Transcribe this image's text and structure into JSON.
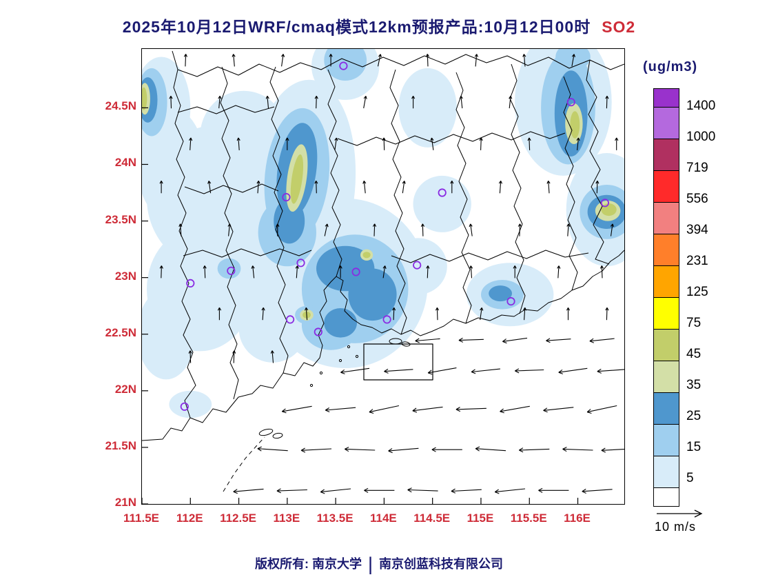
{
  "title": {
    "main": "2025年10月12日WRF/cmaq模式12km预报产品:10月12日00时",
    "species": "SO2"
  },
  "footer": {
    "left": "版权所有: 南京大学",
    "separator": "|",
    "right": "南京创蓝科技有限公司"
  },
  "colorbar": {
    "unit_label": "(ug/m3)",
    "tick_labels": [
      "1400",
      "1000",
      "719",
      "556",
      "394",
      "231",
      "125",
      "75",
      "45",
      "35",
      "25",
      "15",
      "5"
    ],
    "colors_top_to_bottom": [
      "#9932CC",
      "#B469DE",
      "#B03060",
      "#FF2A2A",
      "#F28080",
      "#FF7F2A",
      "#FFA500",
      "#FFFF00",
      "#C2CE6A",
      "#D3DFA7",
      "#4F97CE",
      "#9FCFEF",
      "#D8ECF9",
      "#FFFFFF"
    ]
  },
  "axes": {
    "y_ticks": [
      "24.5N",
      "24N",
      "23.5N",
      "23N",
      "22.5N",
      "22N",
      "21.5N",
      "21N"
    ],
    "x_ticks": [
      "111.5E",
      "112E",
      "112.5E",
      "113E",
      "113.5E",
      "114E",
      "114.5E",
      "115E",
      "115.5E",
      "116E"
    ],
    "tick_color": "#CE2B37"
  },
  "wind_legend": {
    "label": "10 m/s"
  },
  "chart_data": {
    "type": "heatmap",
    "title": "2025年10月12日WRF/cmaq模式12km预报产品:10月12日00时 SO2",
    "species": "SO2",
    "unit": "ug/m3",
    "lon_range": [
      111.5,
      116.48
    ],
    "lat_range": [
      21.0,
      25.02
    ],
    "levels": [
      5,
      15,
      25,
      35,
      45,
      75,
      125,
      231,
      394,
      556,
      719,
      1000,
      1400
    ],
    "level_colors_low_to_high": [
      "#FFFFFF",
      "#D8ECF9",
      "#9FCFEF",
      "#4F97CE",
      "#D3DFA7",
      "#C2CE6A",
      "#FFFF00",
      "#FFA500",
      "#FF7F2A",
      "#F28080",
      "#FF2A2A",
      "#B03060",
      "#B469DE",
      "#9932CC"
    ],
    "station_color": "#8A2BE2",
    "so2_regions": {
      "5": [
        [
          112.3,
          23.7,
          0.75,
          0.65,
          0
        ],
        [
          112.1,
          22.9,
          0.55,
          0.55,
          0
        ],
        [
          112.6,
          23.2,
          0.5,
          0.5,
          0
        ],
        [
          112.55,
          24.25,
          0.45,
          0.4,
          0
        ],
        [
          111.8,
          24.0,
          0.35,
          0.5,
          0
        ],
        [
          111.75,
          22.5,
          0.3,
          0.4,
          0
        ],
        [
          112.85,
          22.55,
          0.35,
          0.3,
          0
        ],
        [
          113.15,
          23.8,
          0.55,
          0.95,
          5
        ],
        [
          113.6,
          22.95,
          0.85,
          0.75,
          0
        ],
        [
          114.35,
          23.1,
          0.3,
          0.25,
          0
        ],
        [
          114.6,
          23.65,
          0.3,
          0.25,
          0
        ],
        [
          113.6,
          24.87,
          0.35,
          0.3,
          0
        ],
        [
          111.7,
          24.5,
          0.3,
          0.45,
          0
        ],
        [
          115.85,
          24.55,
          0.5,
          0.65,
          0
        ],
        [
          116.3,
          23.6,
          0.42,
          0.5,
          0
        ],
        [
          115.3,
          22.85,
          0.45,
          0.28,
          0
        ],
        [
          112.0,
          21.88,
          0.22,
          0.12,
          0
        ],
        [
          114.45,
          24.5,
          0.3,
          0.35,
          0
        ],
        [
          112.4,
          23.08,
          0.2,
          0.15,
          0
        ]
      ],
      "15": [
        [
          113.1,
          23.9,
          0.33,
          0.6,
          6
        ],
        [
          113.0,
          23.4,
          0.3,
          0.3,
          0
        ],
        [
          113.7,
          22.9,
          0.55,
          0.48,
          0
        ],
        [
          113.45,
          22.58,
          0.3,
          0.22,
          0
        ],
        [
          113.6,
          24.92,
          0.22,
          0.18,
          0
        ],
        [
          111.6,
          24.55,
          0.16,
          0.3,
          0
        ],
        [
          115.9,
          24.5,
          0.28,
          0.5,
          0
        ],
        [
          116.3,
          23.58,
          0.28,
          0.24,
          0
        ],
        [
          115.22,
          22.85,
          0.22,
          0.13,
          0
        ],
        [
          113.82,
          23.2,
          0.12,
          0.1,
          0
        ],
        [
          113.2,
          22.67,
          0.12,
          0.08,
          0
        ],
        [
          112.4,
          23.08,
          0.12,
          0.09,
          0
        ],
        [
          115.95,
          24.95,
          0.18,
          0.12,
          0
        ]
      ],
      "25": [
        [
          113.1,
          23.95,
          0.2,
          0.42,
          8
        ],
        [
          113.02,
          23.5,
          0.16,
          0.2,
          0
        ],
        [
          113.6,
          23.08,
          0.3,
          0.2,
          0
        ],
        [
          113.88,
          22.85,
          0.25,
          0.23,
          0
        ],
        [
          113.55,
          22.6,
          0.17,
          0.13,
          0
        ],
        [
          115.93,
          24.45,
          0.17,
          0.38,
          0
        ],
        [
          116.3,
          23.58,
          0.2,
          0.15,
          0
        ],
        [
          115.2,
          22.86,
          0.12,
          0.07,
          0
        ],
        [
          111.56,
          24.57,
          0.1,
          0.2,
          0
        ]
      ],
      "35": [
        [
          113.1,
          23.88,
          0.1,
          0.3,
          8
        ],
        [
          115.96,
          24.36,
          0.09,
          0.18,
          0
        ],
        [
          116.31,
          23.59,
          0.13,
          0.09,
          0
        ],
        [
          113.2,
          22.67,
          0.07,
          0.05,
          0
        ],
        [
          113.82,
          23.2,
          0.065,
          0.05,
          0
        ],
        [
          111.53,
          24.58,
          0.055,
          0.14,
          0
        ]
      ],
      "45": [
        [
          113.1,
          23.87,
          0.055,
          0.22,
          8
        ],
        [
          115.97,
          24.35,
          0.05,
          0.12,
          0
        ],
        [
          116.32,
          23.6,
          0.08,
          0.055,
          0
        ],
        [
          113.2,
          22.67,
          0.042,
          0.03,
          0
        ],
        [
          113.82,
          23.2,
          0.04,
          0.028,
          0
        ],
        [
          111.52,
          24.58,
          0.032,
          0.1,
          0
        ]
      ]
    },
    "stations": [
      [
        113.58,
        24.87
      ],
      [
        115.93,
        24.55
      ],
      [
        112.99,
        23.71
      ],
      [
        114.6,
        23.75
      ],
      [
        112.42,
        23.06
      ],
      [
        112.0,
        22.95
      ],
      [
        113.14,
        23.13
      ],
      [
        113.71,
        23.05
      ],
      [
        114.34,
        23.11
      ],
      [
        115.31,
        22.79
      ],
      [
        113.03,
        22.63
      ],
      [
        113.32,
        22.52
      ],
      [
        114.03,
        22.63
      ],
      [
        111.94,
        21.86
      ],
      [
        116.28,
        23.66
      ]
    ],
    "wind_rows": [
      {
        "lat": 21.12,
        "len": 44,
        "arrows": [
          [
            112.6,
            185
          ],
          [
            113.05,
            182
          ],
          [
            113.5,
            186
          ],
          [
            113.95,
            180
          ],
          [
            114.4,
            178
          ],
          [
            114.85,
            183
          ],
          [
            115.3,
            186
          ],
          [
            115.75,
            180
          ],
          [
            116.2,
            184
          ]
        ]
      },
      {
        "lat": 21.48,
        "len": 44,
        "arrows": [
          [
            112.85,
            176
          ],
          [
            113.3,
            183
          ],
          [
            113.75,
            178
          ],
          [
            114.2,
            185
          ],
          [
            114.65,
            180
          ],
          [
            115.1,
            176
          ],
          [
            115.55,
            182
          ],
          [
            116.0,
            178
          ],
          [
            116.4,
            183
          ]
        ]
      },
      {
        "lat": 21.84,
        "len": 44,
        "arrows": [
          [
            113.1,
            190
          ],
          [
            113.55,
            185
          ],
          [
            114.0,
            192
          ],
          [
            114.45,
            187
          ],
          [
            114.9,
            182
          ],
          [
            115.35,
            190
          ],
          [
            115.8,
            186
          ],
          [
            116.25,
            192
          ]
        ]
      },
      {
        "lat": 22.18,
        "len": 42,
        "arrows": [
          [
            113.7,
            188
          ],
          [
            114.15,
            184
          ],
          [
            114.6,
            190
          ],
          [
            115.05,
            186
          ],
          [
            115.5,
            182
          ],
          [
            115.95,
            188
          ],
          [
            116.35,
            184
          ]
        ]
      },
      {
        "lat": 22.45,
        "len": 36,
        "arrows": [
          [
            114.45,
            185
          ],
          [
            114.9,
            182
          ],
          [
            115.35,
            188
          ],
          [
            115.8,
            184
          ],
          [
            116.25,
            186
          ]
        ]
      },
      {
        "lat": 22.3,
        "len": 18,
        "arrows": [
          [
            112.0,
            92
          ],
          [
            112.45,
            88
          ],
          [
            112.85,
            95
          ]
        ]
      },
      {
        "lat": 22.68,
        "len": 18,
        "arrows": [
          [
            112.3,
            90
          ],
          [
            112.75,
            86
          ],
          [
            113.2,
            94
          ],
          [
            114.1,
            88
          ],
          [
            114.55,
            92
          ],
          [
            115.0,
            82
          ],
          [
            115.45,
            86
          ],
          [
            115.9,
            90
          ],
          [
            116.3,
            88
          ]
        ]
      },
      {
        "lat": 23.05,
        "len": 18,
        "arrows": [
          [
            111.7,
            88
          ],
          [
            112.15,
            92
          ],
          [
            112.65,
            96
          ],
          [
            113.1,
            86
          ],
          [
            113.55,
            90
          ],
          [
            114.0,
            82
          ],
          [
            114.45,
            88
          ],
          [
            114.9,
            94
          ],
          [
            115.35,
            90
          ],
          [
            115.8,
            86
          ],
          [
            116.25,
            92
          ]
        ]
      },
      {
        "lat": 23.42,
        "len": 18,
        "arrows": [
          [
            111.9,
            94
          ],
          [
            112.4,
            84
          ],
          [
            112.9,
            90
          ],
          [
            113.4,
            78
          ],
          [
            113.9,
            88
          ],
          [
            114.4,
            92
          ],
          [
            114.9,
            98
          ],
          [
            115.4,
            88
          ],
          [
            115.9,
            86
          ],
          [
            116.35,
            82
          ]
        ]
      },
      {
        "lat": 23.8,
        "len": 18,
        "arrows": [
          [
            111.7,
            90
          ],
          [
            112.2,
            98
          ],
          [
            112.7,
            86
          ],
          [
            113.3,
            92
          ],
          [
            113.8,
            96
          ],
          [
            114.2,
            82
          ],
          [
            114.7,
            90
          ],
          [
            115.2,
            86
          ],
          [
            115.7,
            94
          ],
          [
            116.2,
            88
          ]
        ]
      },
      {
        "lat": 24.18,
        "len": 18,
        "arrows": [
          [
            112.0,
            86
          ],
          [
            112.5,
            94
          ],
          [
            113.0,
            90
          ],
          [
            113.5,
            82
          ],
          [
            114.0,
            92
          ],
          [
            114.5,
            98
          ],
          [
            115.0,
            88
          ],
          [
            115.5,
            92
          ],
          [
            116.0,
            84
          ],
          [
            116.4,
            90
          ]
        ]
      },
      {
        "lat": 24.55,
        "len": 18,
        "arrows": [
          [
            111.8,
            92
          ],
          [
            112.3,
            85
          ],
          [
            112.8,
            95
          ],
          [
            113.3,
            88
          ],
          [
            113.8,
            80
          ],
          [
            114.3,
            90
          ],
          [
            114.8,
            96
          ],
          [
            115.3,
            84
          ],
          [
            116.3,
            88
          ]
        ]
      },
      {
        "lat": 24.92,
        "len": 18,
        "arrows": [
          [
            111.95,
            88
          ],
          [
            112.45,
            95
          ],
          [
            112.95,
            82
          ],
          [
            113.45,
            90
          ],
          [
            113.95,
            78
          ],
          [
            114.45,
            92
          ],
          [
            114.95,
            85
          ],
          [
            115.45,
            95
          ],
          [
            115.95,
            80
          ]
        ]
      }
    ]
  }
}
